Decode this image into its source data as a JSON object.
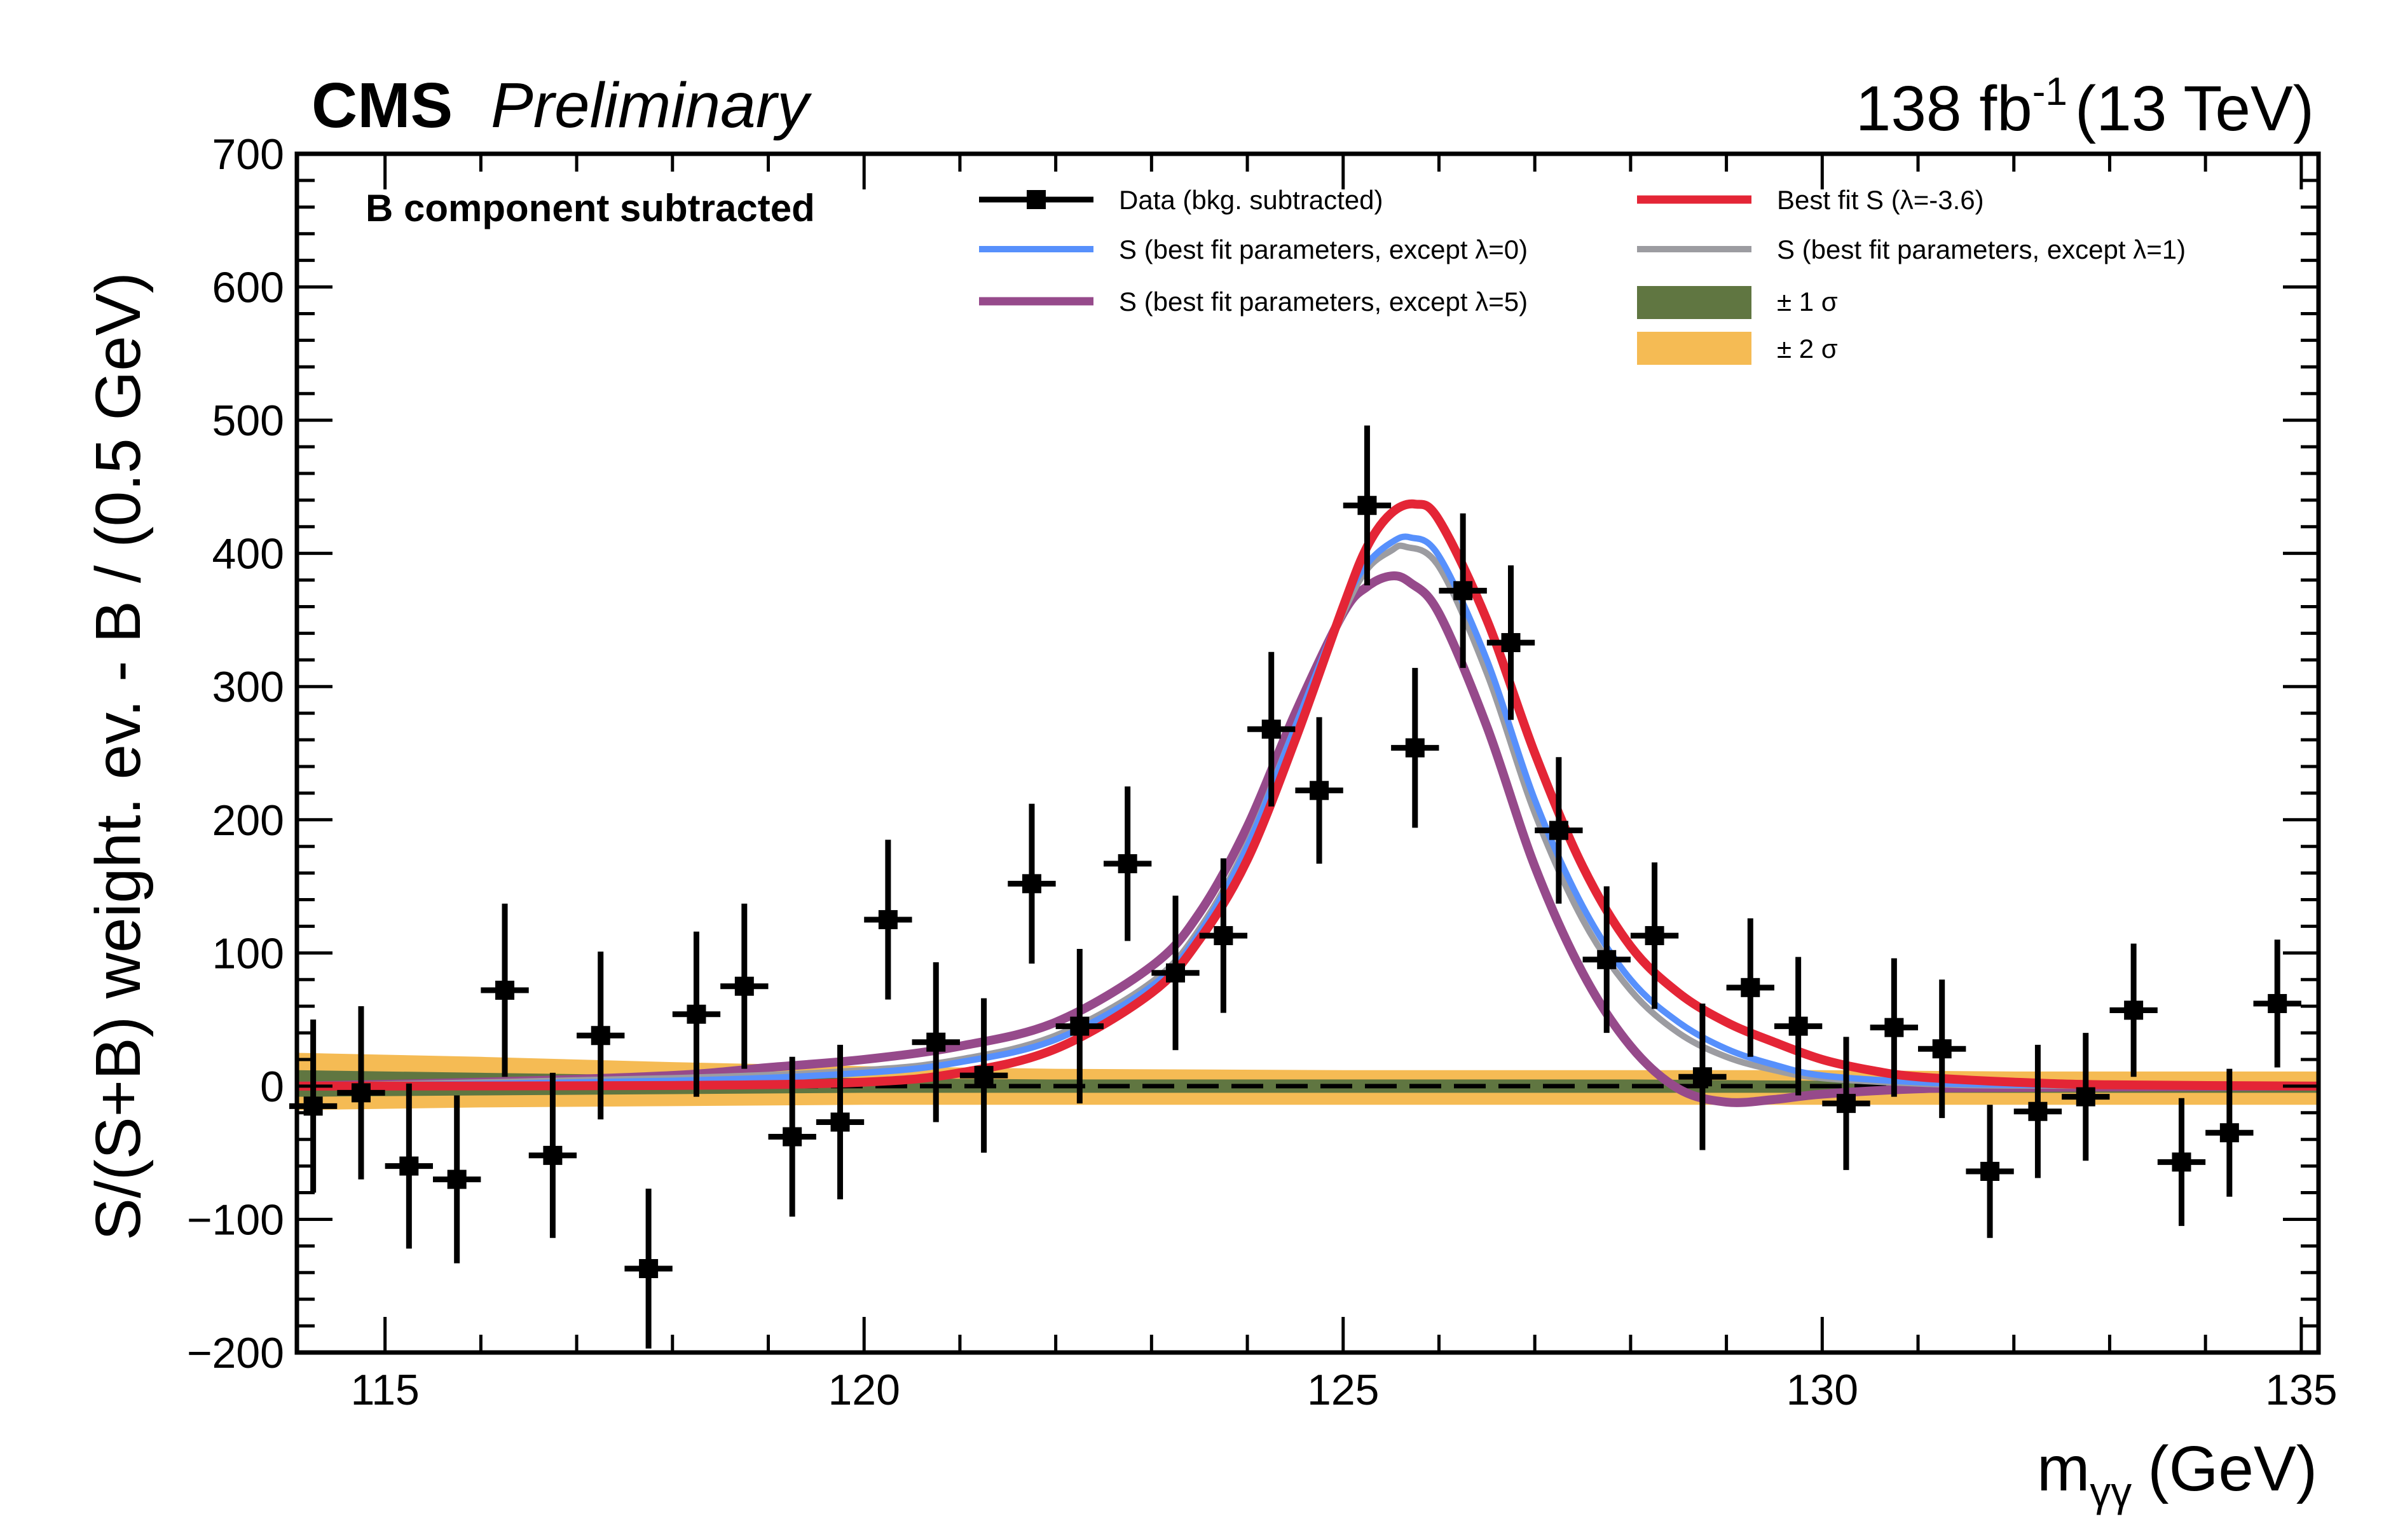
{
  "header": {
    "experiment": "CMS",
    "status": "Preliminary",
    "lumi": "138 fb",
    "lumi_exp": "-1",
    "energy": "(13 TeV)"
  },
  "annotation": "B component subtracted",
  "chart_data": {
    "type": "line",
    "title": "CMS Preliminary",
    "xlabel_main": "m",
    "xlabel_sub": "γγ",
    "xlabel_unit": "(GeV)",
    "ylabel": "S/(S+B) weight. ev. - B / (0.5 GeV)",
    "xlim": [
      114.08,
      135.18
    ],
    "ylim": [
      -200,
      700
    ],
    "xticks": [
      115,
      120,
      125,
      130,
      135
    ],
    "yticks": [
      -200,
      -100,
      0,
      100,
      200,
      300,
      400,
      500,
      600,
      700
    ],
    "ytick_labels": [
      "−200",
      "−100",
      "0",
      "100",
      "200",
      "300",
      "400",
      "500",
      "600",
      "700"
    ],
    "grid": false,
    "legend_placement": "top-right",
    "legend": [
      {
        "key": "data",
        "label": "Data (bkg. subtracted)",
        "color": "#000000",
        "kind": "marker"
      },
      {
        "key": "bestfit",
        "label": "Best fit S (λ=-3.6)",
        "color": "#e42536",
        "kind": "line"
      },
      {
        "key": "l0",
        "label": "S (best fit parameters, except λ=0)",
        "color": "#5790fc",
        "kind": "line"
      },
      {
        "key": "l1",
        "label": "S (best fit parameters, except λ=1)",
        "color": "#9c9ca1",
        "kind": "line"
      },
      {
        "key": "l5",
        "label": "S (best fit parameters, except λ=5)",
        "color": "#964a8b",
        "kind": "line"
      },
      {
        "key": "s1",
        "label": "± 1 σ",
        "color": "#607641",
        "kind": "box"
      },
      {
        "key": "s2",
        "label": "± 2 σ",
        "color": "#f5bb54",
        "kind": "box"
      }
    ],
    "data": {
      "x": [
        114.25,
        114.75,
        115.25,
        115.75,
        116.25,
        116.75,
        117.25,
        117.75,
        118.25,
        118.75,
        119.25,
        119.75,
        120.25,
        120.75,
        121.25,
        121.75,
        122.25,
        122.75,
        123.25,
        123.75,
        124.25,
        124.75,
        125.25,
        125.75,
        126.25,
        126.75,
        127.25,
        127.75,
        128.25,
        128.75,
        129.25,
        129.75,
        130.25,
        130.75,
        131.25,
        131.75,
        132.25,
        132.75,
        133.25,
        133.75,
        134.25,
        134.75
      ],
      "y": [
        -15,
        -5,
        -60,
        -70,
        72,
        -52,
        38,
        -137,
        54,
        75,
        -38,
        -27,
        125,
        33,
        8,
        152,
        45,
        167,
        85,
        113,
        268,
        222,
        436,
        254,
        372,
        333,
        192,
        95,
        113,
        7,
        74,
        45,
        -13,
        44,
        28,
        -64,
        -19,
        -8,
        57,
        -57,
        -35,
        62
      ],
      "yerr": [
        65,
        65,
        62,
        63,
        65,
        62,
        63,
        60,
        62,
        62,
        60,
        58,
        60,
        60,
        58,
        60,
        58,
        58,
        58,
        58,
        58,
        55,
        60,
        60,
        58,
        58,
        55,
        55,
        55,
        55,
        52,
        52,
        50,
        52,
        52,
        50,
        50,
        48,
        50,
        48,
        48,
        48
      ],
      "xerr": 0.25
    },
    "curves": [
      {
        "key": "l5",
        "x": [
          114.08,
          116,
          118,
          119,
          120,
          121,
          122,
          123,
          123.5,
          124,
          124.5,
          125,
          125.25,
          125.5,
          125.7,
          126,
          126.5,
          127,
          127.5,
          128,
          128.5,
          129,
          129.5,
          130,
          131,
          132,
          135.18
        ],
        "y": [
          0,
          3,
          8,
          14,
          20,
          30,
          48,
          90,
          130,
          195,
          280,
          355,
          375,
          383,
          378,
          355,
          270,
          165,
          85,
          30,
          -2,
          -12,
          -10,
          -6,
          -2,
          -1,
          0
        ]
      },
      {
        "key": "l1",
        "x": [
          114.08,
          118,
          120,
          121,
          122,
          123,
          123.5,
          124,
          124.5,
          125,
          125.25,
          125.5,
          125.65,
          126,
          126.5,
          127,
          127.5,
          128,
          128.5,
          129,
          129.5,
          130,
          131,
          132,
          135.18
        ],
        "y": [
          0,
          6,
          12,
          20,
          38,
          78,
          118,
          182,
          270,
          355,
          388,
          402,
          405,
          390,
          310,
          205,
          125,
          72,
          40,
          22,
          12,
          6,
          2,
          0.5,
          0
        ]
      },
      {
        "key": "l0",
        "x": [
          114.08,
          118,
          120,
          121,
          122,
          123,
          123.5,
          124,
          124.5,
          125,
          125.25,
          125.5,
          125.7,
          126,
          126.5,
          127,
          127.5,
          128,
          128.5,
          129,
          129.5,
          130,
          131,
          132,
          135.18
        ],
        "y": [
          0,
          4,
          10,
          18,
          35,
          75,
          115,
          180,
          270,
          360,
          392,
          408,
          412,
          398,
          320,
          215,
          135,
          80,
          48,
          28,
          16,
          8,
          3,
          1,
          0
        ]
      },
      {
        "key": "bestfit",
        "x": [
          114.08,
          118,
          120,
          121,
          122,
          123,
          123.5,
          124,
          124.5,
          125,
          125.25,
          125.5,
          125.75,
          126,
          126.5,
          127,
          127.5,
          128,
          128.5,
          129,
          129.5,
          130,
          130.5,
          131,
          132,
          133,
          135.18
        ],
        "y": [
          0,
          0.5,
          3,
          10,
          28,
          70,
          110,
          170,
          260,
          360,
          405,
          430,
          437,
          425,
          350,
          250,
          165,
          105,
          70,
          48,
          33,
          20,
          12,
          7,
          3,
          1,
          0
        ]
      }
    ],
    "bands": {
      "x": [
        114.08,
        116,
        118,
        120,
        122,
        125,
        128,
        130,
        132,
        135.18
      ],
      "sigma1_up": [
        12,
        10,
        8,
        6,
        5,
        5,
        5,
        4,
        4,
        3
      ],
      "sigma1_down": [
        -8,
        -7,
        -6,
        -5,
        -5,
        -5,
        -5,
        -5,
        -5,
        -5
      ],
      "sigma2_up": [
        25,
        22,
        18,
        15,
        13,
        12,
        12,
        12,
        11,
        11
      ],
      "sigma2_down": [
        -18,
        -16,
        -15,
        -14,
        -14,
        -14,
        -14,
        -14,
        -14,
        -14
      ]
    }
  }
}
